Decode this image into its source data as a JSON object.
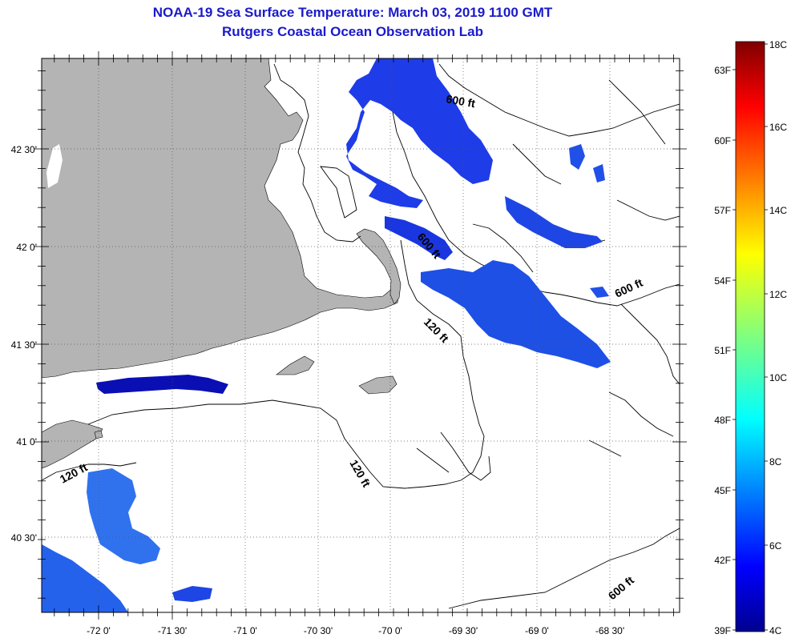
{
  "title_line1": "NOAA-19 Sea Surface Temperature:  March 03, 2019 1100 GMT",
  "title_line2": "Rutgers Coastal Ocean Observation Lab",
  "lon_labels": [
    "-72 0'",
    "-71 30'",
    "-71 0'",
    "-70 30'",
    "-70 0'",
    "-69 30'",
    "-69 0'",
    "-68 30'"
  ],
  "lat_labels": [
    "42 30'",
    "42 0'",
    "41 30'",
    "41 0'",
    "40 30'"
  ],
  "contour_labels": [
    "600 ft",
    "600 ft",
    "600 ft",
    "600 ft",
    "120 ft",
    "120 ft",
    "120 ft"
  ],
  "colorbar": {
    "fahrenheit": [
      "63F",
      "60F",
      "57F",
      "54F",
      "51F",
      "48F",
      "45F",
      "42F",
      "39F"
    ],
    "celsius": [
      "18C",
      "16C",
      "14C",
      "12C",
      "10C",
      "8C",
      "6C",
      "4C"
    ]
  },
  "colors": {
    "title": "#1a1acc",
    "land": "#b4b4b4",
    "sst_dark": "#0a14c8",
    "sst_mid": "#1e50e6",
    "sst_light": "#3c8cf0"
  }
}
